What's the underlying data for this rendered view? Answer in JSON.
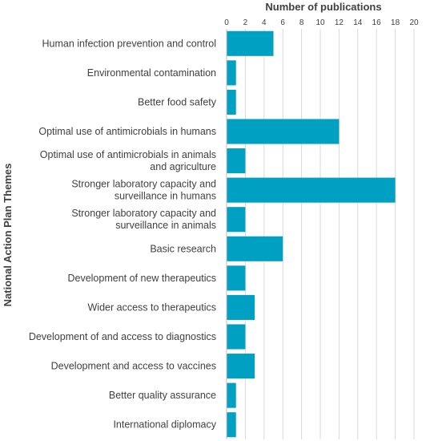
{
  "chart_data": {
    "type": "bar",
    "orientation": "horizontal",
    "title": "",
    "xlabel": "Number of publications",
    "ylabel": "National Action Plan Themes",
    "xlim": [
      0,
      20
    ],
    "x_ticks": [
      0,
      2,
      4,
      6,
      8,
      10,
      12,
      14,
      16,
      18,
      20
    ],
    "grid": true,
    "bar_color": "#00A0C3",
    "categories": [
      [
        "Human infection prevention and control"
      ],
      [
        "Environmental contamination"
      ],
      [
        "Better food safety"
      ],
      [
        "Optimal use of antimicrobials in humans"
      ],
      [
        "Optimal use of antimicrobials in animals",
        "and agriculture"
      ],
      [
        "Stronger laboratory capacity and",
        "surveillance in humans"
      ],
      [
        "Stronger laboratory capacity and",
        "surveillance in animals"
      ],
      [
        "Basic research"
      ],
      [
        "Development of new therapeutics"
      ],
      [
        "Wider access to therapeutics"
      ],
      [
        "Development of and access to diagnostics"
      ],
      [
        "Development and access to vaccines"
      ],
      [
        "Better quality assurance"
      ],
      [
        "International diplomacy"
      ]
    ],
    "values": [
      5,
      1,
      1,
      12,
      2,
      18,
      2,
      6,
      2,
      3,
      2,
      3,
      1,
      1
    ]
  }
}
